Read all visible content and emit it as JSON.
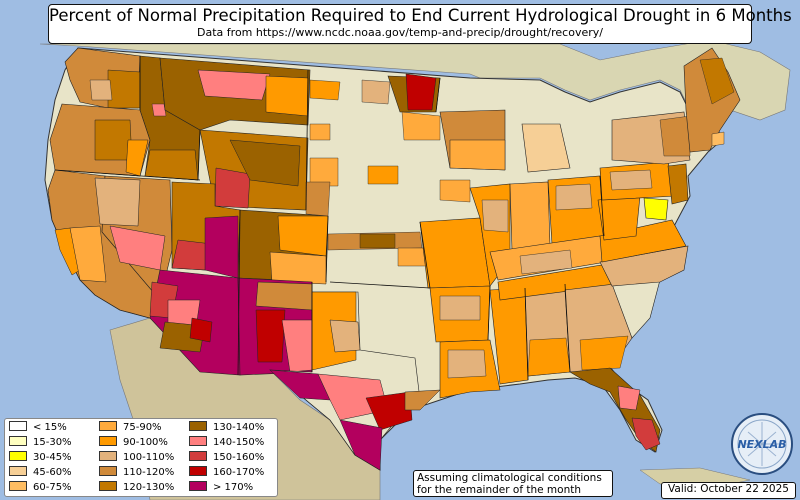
{
  "title": "Percent of Normal Precipitation Required to End Current Hydrological Drought in 6 Months",
  "subtitle": "Data from https://www.ncdc.noaa.gov/temp-and-precip/drought/recovery/",
  "legend": [
    {
      "label": "< 15%",
      "color": "#ffffff"
    },
    {
      "label": "15-30%",
      "color": "#ffffc0"
    },
    {
      "label": "30-45%",
      "color": "#ffff00"
    },
    {
      "label": "45-60%",
      "color": "#f6cf96"
    },
    {
      "label": "60-75%",
      "color": "#ffbd62"
    },
    {
      "label": "75-90%",
      "color": "#ffaa3c"
    },
    {
      "label": "90-100%",
      "color": "#ff9a00"
    },
    {
      "label": "100-110%",
      "color": "#e3b27c"
    },
    {
      "label": "110-120%",
      "color": "#d08a3a"
    },
    {
      "label": "120-130%",
      "color": "#c27800"
    },
    {
      "label": "130-140%",
      "color": "#9b6200"
    },
    {
      "label": "140-150%",
      "color": "#ff7f7f"
    },
    {
      "label": "150-160%",
      "color": "#d23c3c"
    },
    {
      "label": "160-170%",
      "color": "#c00000"
    },
    {
      "label": "> 170%",
      "color": "#b3005e"
    }
  ],
  "note": {
    "line1": "Assuming climatological conditions",
    "line2": "for the remainder of the month"
  },
  "valid": "Valid: October 22 2025",
  "logo": {
    "text": "NEXLAB"
  },
  "colors": {
    "ocean": "#9fbde3",
    "land_outside": "#d9cfa8",
    "land_no_drought": "#e8e4c8"
  }
}
